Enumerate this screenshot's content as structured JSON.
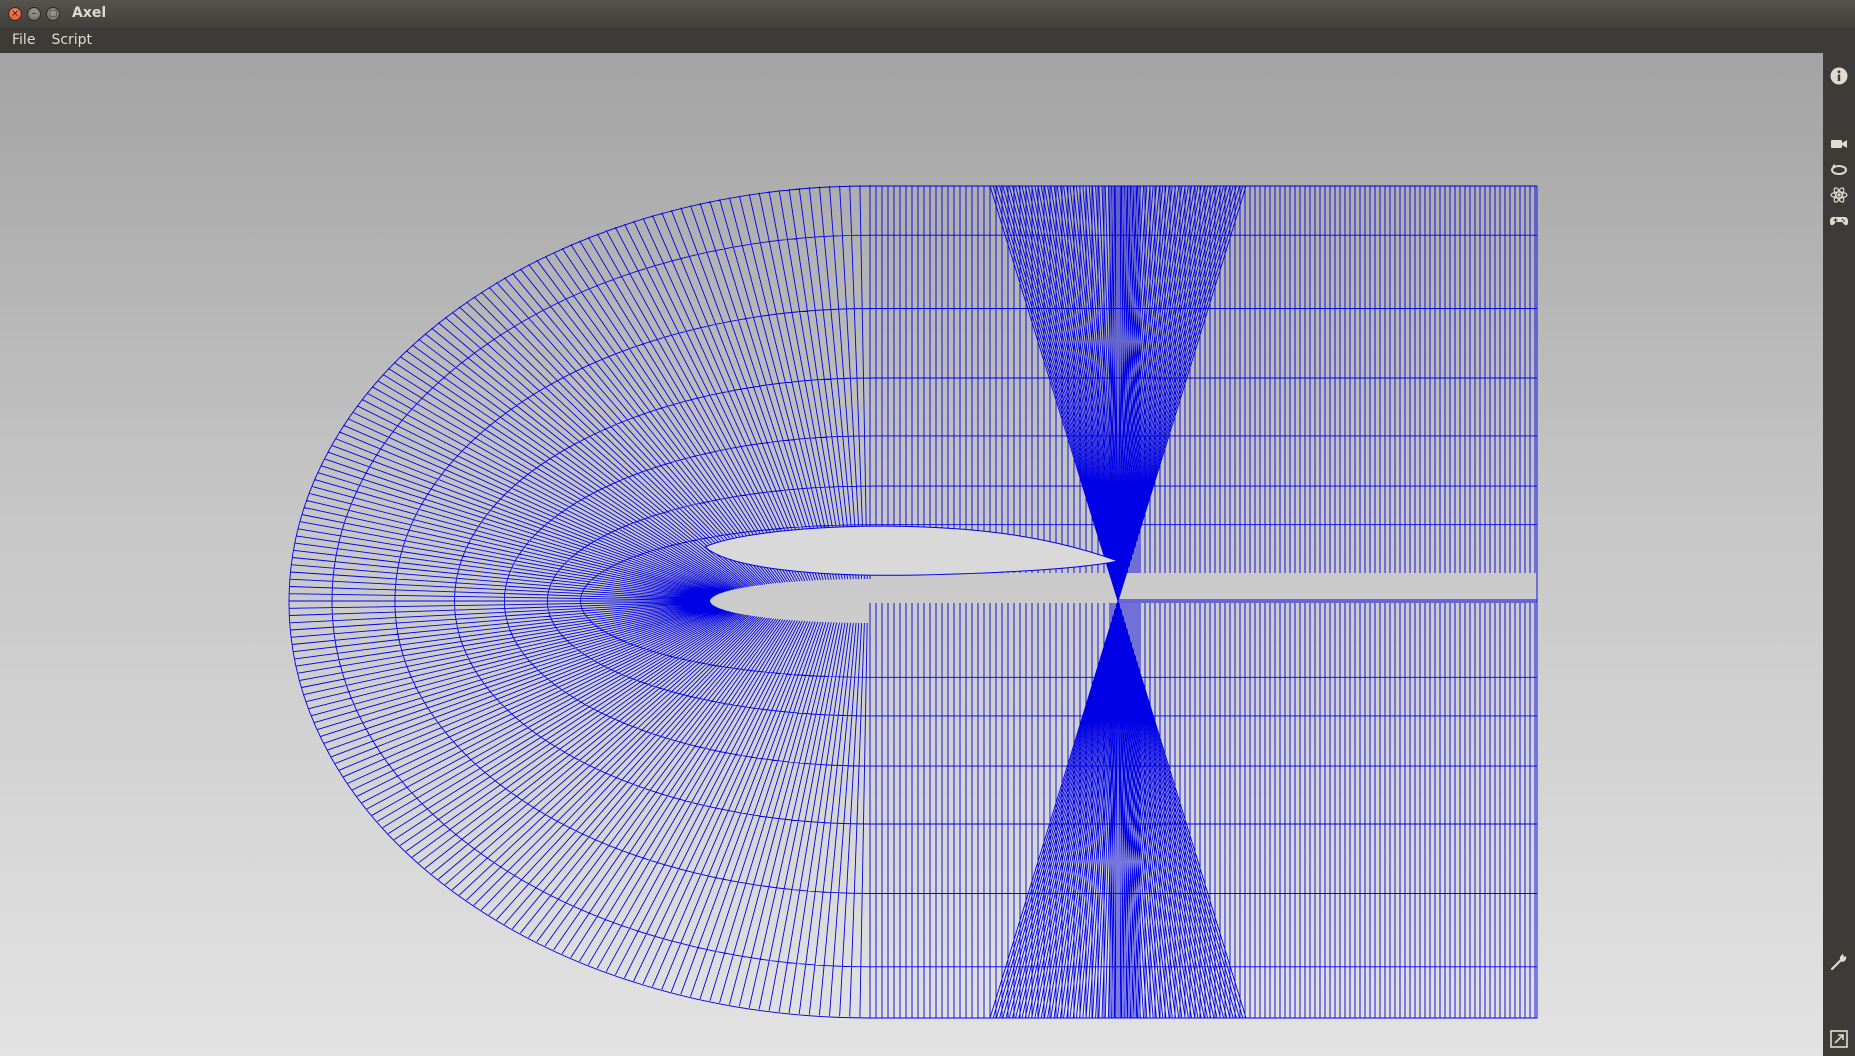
{
  "window": {
    "title": "Axel",
    "close_symbol": "×",
    "minimize_symbol": "–",
    "maximize_symbol": "□"
  },
  "menubar": {
    "items": [
      {
        "label": "File"
      },
      {
        "label": "Script"
      }
    ]
  },
  "sidebar": {
    "top_icons": [
      "info-icon"
    ],
    "mid_icons": [
      "camera-icon",
      "rotate-view-icon",
      "atom-icon",
      "gamepad-icon"
    ],
    "bottom_icons": [
      "wrench-icon",
      "fullscreen-icon"
    ]
  },
  "viewport": {
    "content": "structured C-mesh around airfoil",
    "mesh_color": "#0000e6",
    "background_top": "#a3a3a3",
    "background_bottom": "#e3e3e3"
  }
}
